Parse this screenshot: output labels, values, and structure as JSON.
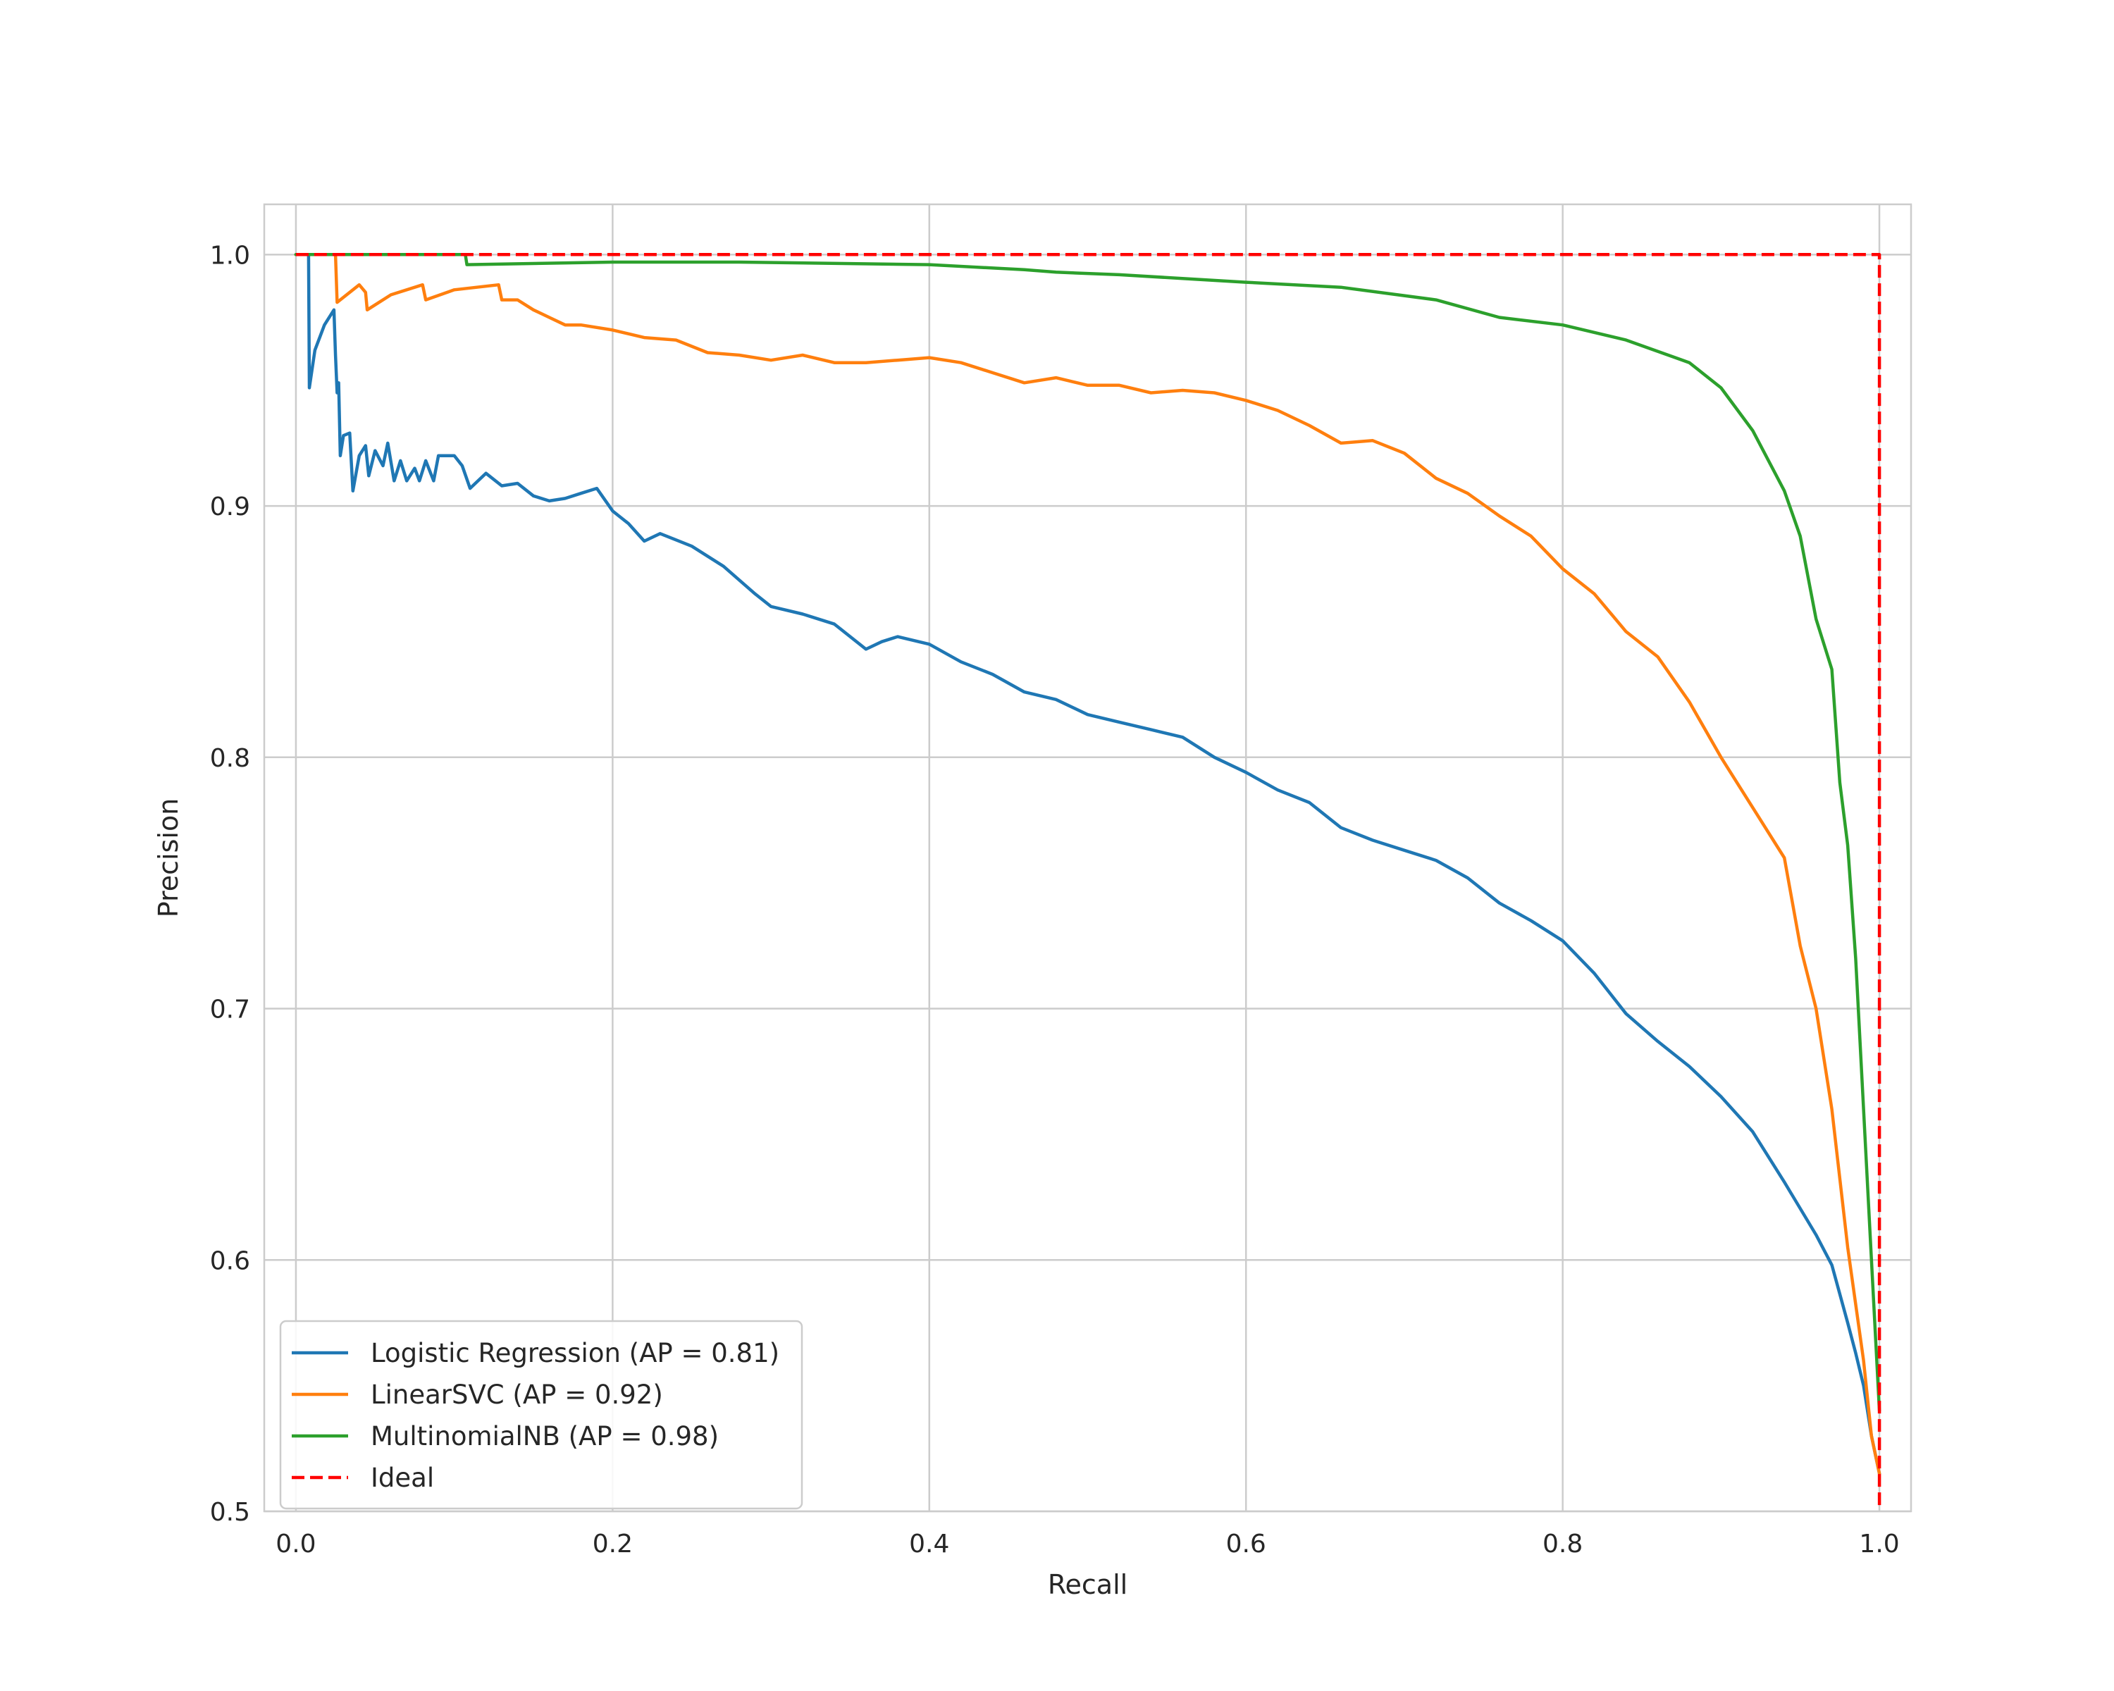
{
  "chart_data": {
    "type": "line",
    "xlabel": "Recall",
    "ylabel": "Precision",
    "xlim": [
      -0.02,
      1.02
    ],
    "ylim": [
      0.5,
      1.02
    ],
    "xticks": [
      0.0,
      0.2,
      0.4,
      0.6,
      0.8,
      1.0
    ],
    "xtick_labels": [
      "0.0",
      "0.2",
      "0.4",
      "0.6",
      "0.8",
      "1.0"
    ],
    "yticks": [
      0.5,
      0.6,
      0.7,
      0.8,
      0.9,
      1.0
    ],
    "ytick_labels": [
      "0.5",
      "0.6",
      "0.7",
      "0.8",
      "0.9",
      "1.0"
    ],
    "grid": true,
    "legend_position": "lower-left",
    "series": [
      {
        "name": "Logistic Regression (AP = 0.81)",
        "color": "#1f77b4",
        "dashed": false,
        "x": [
          0.0,
          0.008,
          0.0085,
          0.012,
          0.018,
          0.024,
          0.025,
          0.026,
          0.027,
          0.028,
          0.03,
          0.034,
          0.036,
          0.04,
          0.044,
          0.046,
          0.05,
          0.055,
          0.058,
          0.062,
          0.066,
          0.07,
          0.075,
          0.078,
          0.082,
          0.087,
          0.09,
          0.1,
          0.105,
          0.11,
          0.115,
          0.12,
          0.13,
          0.14,
          0.15,
          0.16,
          0.17,
          0.18,
          0.19,
          0.2,
          0.21,
          0.22,
          0.23,
          0.25,
          0.27,
          0.29,
          0.3,
          0.32,
          0.34,
          0.36,
          0.37,
          0.38,
          0.4,
          0.42,
          0.44,
          0.46,
          0.48,
          0.5,
          0.52,
          0.54,
          0.56,
          0.58,
          0.6,
          0.62,
          0.64,
          0.66,
          0.68,
          0.7,
          0.72,
          0.74,
          0.76,
          0.78,
          0.8,
          0.82,
          0.84,
          0.86,
          0.88,
          0.9,
          0.92,
          0.94,
          0.96,
          0.97,
          0.98,
          0.985,
          0.99,
          0.995,
          1.0
        ],
        "y": [
          1.0,
          1.0,
          0.947,
          0.962,
          0.972,
          0.978,
          0.96,
          0.945,
          0.949,
          0.92,
          0.928,
          0.929,
          0.906,
          0.92,
          0.924,
          0.912,
          0.922,
          0.916,
          0.925,
          0.91,
          0.918,
          0.91,
          0.915,
          0.91,
          0.918,
          0.91,
          0.92,
          0.92,
          0.916,
          0.907,
          0.91,
          0.913,
          0.908,
          0.909,
          0.904,
          0.902,
          0.903,
          0.905,
          0.907,
          0.898,
          0.893,
          0.886,
          0.889,
          0.884,
          0.876,
          0.865,
          0.86,
          0.857,
          0.853,
          0.843,
          0.846,
          0.848,
          0.845,
          0.838,
          0.833,
          0.826,
          0.823,
          0.817,
          0.814,
          0.811,
          0.808,
          0.8,
          0.794,
          0.787,
          0.782,
          0.772,
          0.767,
          0.763,
          0.759,
          0.752,
          0.742,
          0.735,
          0.727,
          0.714,
          0.698,
          0.687,
          0.677,
          0.665,
          0.651,
          0.631,
          0.61,
          0.598,
          0.575,
          0.563,
          0.55,
          0.53,
          0.515
        ]
      },
      {
        "name": "LinearSVC (AP = 0.92)",
        "color": "#ff7f0e",
        "dashed": false,
        "x": [
          0.0,
          0.025,
          0.026,
          0.04,
          0.044,
          0.045,
          0.06,
          0.08,
          0.082,
          0.1,
          0.128,
          0.13,
          0.14,
          0.15,
          0.16,
          0.17,
          0.18,
          0.2,
          0.22,
          0.24,
          0.26,
          0.28,
          0.3,
          0.32,
          0.34,
          0.36,
          0.38,
          0.4,
          0.42,
          0.44,
          0.46,
          0.48,
          0.5,
          0.52,
          0.54,
          0.56,
          0.58,
          0.6,
          0.62,
          0.64,
          0.66,
          0.68,
          0.7,
          0.72,
          0.74,
          0.76,
          0.78,
          0.8,
          0.82,
          0.84,
          0.86,
          0.88,
          0.9,
          0.92,
          0.94,
          0.95,
          0.96,
          0.97,
          0.98,
          0.99,
          0.995,
          1.0
        ],
        "y": [
          1.0,
          1.0,
          0.981,
          0.988,
          0.985,
          0.978,
          0.984,
          0.988,
          0.982,
          0.986,
          0.988,
          0.982,
          0.982,
          0.978,
          0.975,
          0.972,
          0.972,
          0.97,
          0.967,
          0.966,
          0.961,
          0.96,
          0.958,
          0.96,
          0.957,
          0.957,
          0.958,
          0.959,
          0.957,
          0.953,
          0.949,
          0.951,
          0.948,
          0.948,
          0.945,
          0.946,
          0.945,
          0.942,
          0.938,
          0.932,
          0.925,
          0.926,
          0.921,
          0.911,
          0.905,
          0.896,
          0.888,
          0.875,
          0.865,
          0.85,
          0.84,
          0.822,
          0.8,
          0.78,
          0.76,
          0.725,
          0.7,
          0.66,
          0.605,
          0.56,
          0.53,
          0.515
        ]
      },
      {
        "name": "MultinomialNB (AP = 0.98)",
        "color": "#2ca02c",
        "dashed": false,
        "x": [
          0.0,
          0.107,
          0.108,
          0.2,
          0.28,
          0.4,
          0.46,
          0.48,
          0.52,
          0.6,
          0.66,
          0.72,
          0.76,
          0.8,
          0.84,
          0.88,
          0.9,
          0.92,
          0.94,
          0.95,
          0.96,
          0.97,
          0.975,
          0.98,
          0.985,
          0.99,
          0.995,
          1.0
        ],
        "y": [
          1.0,
          1.0,
          0.996,
          0.997,
          0.997,
          0.996,
          0.994,
          0.993,
          0.992,
          0.989,
          0.987,
          0.982,
          0.975,
          0.972,
          0.966,
          0.957,
          0.947,
          0.93,
          0.906,
          0.888,
          0.855,
          0.835,
          0.79,
          0.765,
          0.72,
          0.66,
          0.6,
          0.54
        ]
      },
      {
        "name": "Ideal",
        "color": "#ff0000",
        "dashed": true,
        "x": [
          0.0,
          1.0,
          1.0
        ],
        "y": [
          1.0,
          1.0,
          0.5
        ]
      }
    ]
  }
}
